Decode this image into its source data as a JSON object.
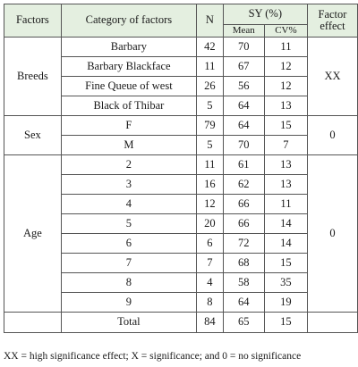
{
  "header": {
    "factors": "Factors",
    "category": "Category of factors",
    "n": "N",
    "sy": "SY (%)",
    "mean": "Mean",
    "cv": "CV%",
    "factor_effect": "Factor effect"
  },
  "groups": [
    {
      "label": "Breeds",
      "effect": "XX",
      "rows": [
        {
          "category": "Barbary",
          "n": "42",
          "mean": "70",
          "cv": "11"
        },
        {
          "category": "Barbary Blackface",
          "n": "11",
          "mean": "67",
          "cv": "12"
        },
        {
          "category": "Fine Queue of west",
          "n": "26",
          "mean": "56",
          "cv": "12"
        },
        {
          "category": "Black of Thibar",
          "n": "5",
          "mean": "64",
          "cv": "13"
        }
      ]
    },
    {
      "label": "Sex",
      "effect": "0",
      "rows": [
        {
          "category": "F",
          "n": "79",
          "mean": "64",
          "cv": "15"
        },
        {
          "category": "M",
          "n": "5",
          "mean": "70",
          "cv": "7"
        }
      ]
    },
    {
      "label": "Age",
      "effect": "0",
      "rows": [
        {
          "category": "2",
          "n": "11",
          "mean": "61",
          "cv": "13"
        },
        {
          "category": "3",
          "n": "16",
          "mean": "62",
          "cv": "13"
        },
        {
          "category": "4",
          "n": "12",
          "mean": "66",
          "cv": "11"
        },
        {
          "category": "5",
          "n": "20",
          "mean": "66",
          "cv": "14"
        },
        {
          "category": "6",
          "n": "6",
          "mean": "72",
          "cv": "14"
        },
        {
          "category": "7",
          "n": "7",
          "mean": "68",
          "cv": "15"
        },
        {
          "category": "8",
          "n": "4",
          "mean": "58",
          "cv": "35"
        },
        {
          "category": "9",
          "n": "8",
          "mean": "64",
          "cv": "19"
        }
      ]
    }
  ],
  "total": {
    "label": "Total",
    "n": "84",
    "mean": "65",
    "cv": "15"
  },
  "footnote": "XX = high significance effect; X = significance; and 0 = no significance",
  "colors": {
    "header_bg": "#e4efe0",
    "border": "#555555",
    "text": "#1a1a1a"
  }
}
